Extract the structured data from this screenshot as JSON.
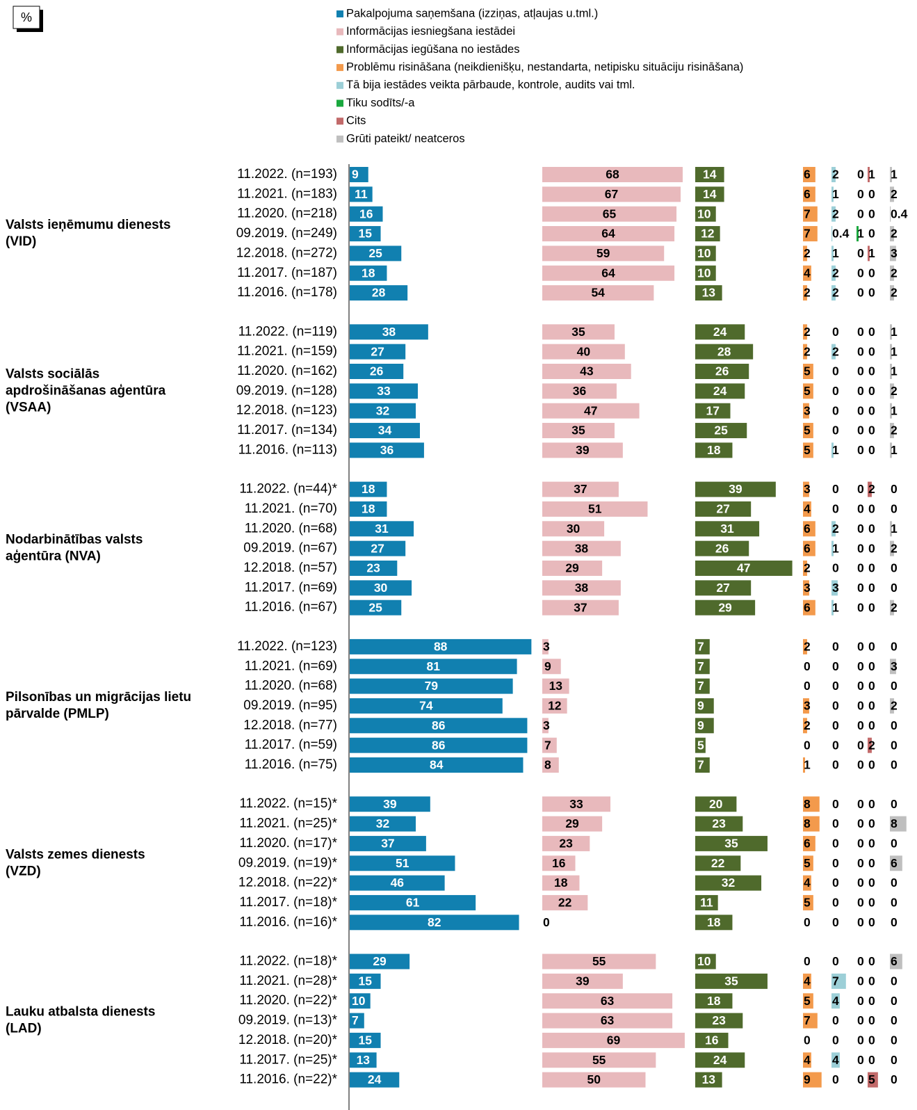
{
  "chart_data": {
    "type": "bar",
    "unit_label": "%",
    "categories": [
      "11.2022. (n=193)",
      "11.2021. (n=183)",
      "11.2020. (n=218)",
      "09.2019. (n=249)",
      "12.2018. (n=272)",
      "11.2017. (n=187)",
      "11.2016. (n=178)",
      "11.2022. (n=119)",
      "11.2021. (n=159)",
      "11.2020. (n=162)",
      "09.2019. (n=128)",
      "12.2018. (n=123)",
      "11.2017. (n=134)",
      "11.2016. (n=113)",
      "11.2022. (n=44)*",
      "11.2021. (n=70)",
      "11.2020. (n=68)",
      "09.2019. (n=67)",
      "12.2018. (n=57)",
      "11.2017. (n=69)",
      "11.2016. (n=67)",
      "11.2022. (n=123)",
      "11.2021. (n=69)",
      "11.2020. (n=68)",
      "09.2019. (n=95)",
      "12.2018. (n=77)",
      "11.2017. (n=59)",
      "11.2016. (n=75)",
      "11.2022. (n=15)*",
      "11.2021. (n=25)*",
      "11.2020. (n=17)*",
      "09.2019. (n=19)*",
      "12.2018. (n=22)*",
      "11.2017. (n=18)*",
      "11.2016. (n=16)*",
      "11.2022. (n=18)*",
      "11.2021. (n=28)*",
      "11.2020. (n=22)*",
      "09.2019. (n=13)*",
      "12.2018. (n=20)*",
      "11.2017. (n=25)*",
      "11.2016. (n=22)*"
    ],
    "groups": [
      {
        "label": [
          "Valsts ieņēmumu dienests",
          "(VID)"
        ]
      },
      {
        "label": [
          "Valsts sociālās",
          "apdrošināšanas aģentūra",
          "(VSAA)"
        ]
      },
      {
        "label": [
          "Nodarbinātības valsts",
          "aģentūra (NVA)"
        ]
      },
      {
        "label": [
          "Pilsonības un migrācijas lietu",
          "pārvalde (PMLP)"
        ]
      },
      {
        "label": [
          "Valsts zemes dienests",
          "(VZD)"
        ]
      },
      {
        "label": [
          "Lauku atbalsta dienests",
          "(LAD)"
        ]
      }
    ],
    "series": [
      {
        "name": "Pakalpojuma saņemšana (izziņas, atļaujas u.tml.)",
        "color": "#1180b0",
        "values": [
          9,
          11,
          16,
          15,
          25,
          18,
          28,
          38,
          27,
          26,
          33,
          32,
          34,
          36,
          18,
          18,
          31,
          27,
          23,
          30,
          25,
          88,
          81,
          79,
          74,
          86,
          86,
          84,
          39,
          32,
          37,
          51,
          46,
          61,
          82,
          29,
          15,
          10,
          7,
          15,
          13,
          24
        ]
      },
      {
        "name": "Informācijas iesniegšana iestādei",
        "color": "#e8b9bc",
        "values": [
          68,
          67,
          65,
          64,
          59,
          64,
          54,
          35,
          40,
          43,
          36,
          47,
          35,
          39,
          37,
          51,
          30,
          38,
          29,
          38,
          37,
          3,
          9,
          13,
          12,
          3,
          7,
          8,
          33,
          29,
          23,
          16,
          18,
          22,
          0,
          55,
          39,
          63,
          63,
          69,
          55,
          50
        ]
      },
      {
        "name": "Informācijas iegūšana no iestādes",
        "color": "#4f6a2c",
        "values": [
          14,
          14,
          10,
          12,
          10,
          10,
          13,
          24,
          28,
          26,
          24,
          17,
          25,
          18,
          39,
          27,
          31,
          26,
          47,
          27,
          29,
          7,
          7,
          7,
          9,
          9,
          5,
          7,
          20,
          23,
          35,
          22,
          32,
          11,
          18,
          10,
          35,
          18,
          23,
          16,
          24,
          13
        ]
      },
      {
        "name": "Problēmu risināšana (neikdienišķu, nestandarta, netipisku situāciju risināšana)",
        "color": "#f39a4c",
        "values": [
          6,
          6,
          7,
          7,
          2,
          4,
          2,
          2,
          2,
          5,
          5,
          3,
          5,
          5,
          3,
          4,
          6,
          6,
          2,
          3,
          6,
          2,
          0,
          0,
          3,
          2,
          0,
          1,
          8,
          8,
          6,
          5,
          4,
          5,
          0,
          0,
          4,
          5,
          7,
          0,
          4,
          9
        ]
      },
      {
        "name": "Tā bija iestādes veikta pārbaude, kontrole, audits vai tml.",
        "color": "#9ccfd7",
        "values": [
          2,
          1,
          2,
          0.4,
          1,
          2,
          2,
          0,
          2,
          0,
          0,
          0,
          0,
          1,
          0,
          0,
          2,
          1,
          0,
          3,
          1,
          0,
          0,
          0,
          0,
          0,
          0,
          0,
          0,
          0,
          0,
          0,
          0,
          0,
          0,
          0,
          7,
          4,
          0,
          0,
          4,
          0
        ]
      },
      {
        "name": "Tiku sodīts/-a",
        "color": "#1aa83e",
        "values": [
          0,
          0,
          0,
          1,
          0,
          0,
          0,
          0,
          0,
          0,
          0,
          0,
          0,
          0,
          0,
          0,
          0,
          0,
          0,
          0,
          0,
          0,
          0,
          0,
          0,
          0,
          0,
          0,
          0,
          0,
          0,
          0,
          0,
          0,
          0,
          0,
          0,
          0,
          0,
          0,
          0,
          0
        ]
      },
      {
        "name": "Cits",
        "color": "#c26a6a",
        "values": [
          1,
          0,
          0,
          0,
          1,
          0,
          0,
          0,
          0,
          0,
          0,
          0,
          0,
          0,
          2,
          0,
          0,
          0,
          0,
          0,
          0,
          0,
          0,
          0,
          0,
          0,
          2,
          0,
          0,
          0,
          0,
          0,
          0,
          0,
          0,
          0,
          0,
          0,
          0,
          0,
          0,
          5
        ]
      },
      {
        "name": "Grūti pateikt/ neatceros",
        "color": "#bfbfbf",
        "values": [
          1,
          2,
          0.4,
          2,
          3,
          2,
          2,
          1,
          1,
          1,
          2,
          1,
          2,
          1,
          0,
          0,
          1,
          2,
          0,
          0,
          2,
          0,
          3,
          0,
          2,
          0,
          0,
          0,
          0,
          8,
          0,
          6,
          0,
          0,
          0,
          6,
          0,
          0,
          0,
          0,
          0,
          0
        ]
      }
    ]
  }
}
